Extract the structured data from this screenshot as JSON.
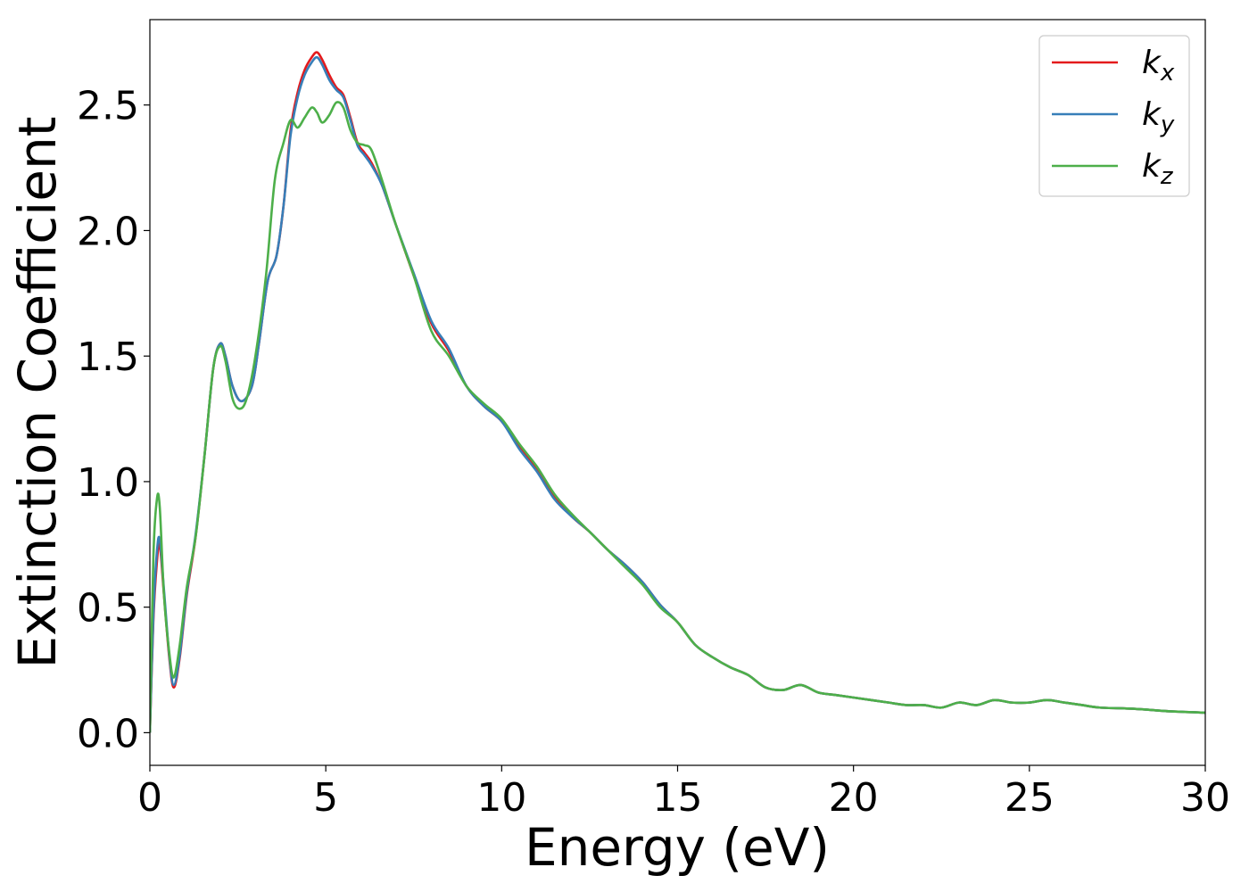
{
  "chart_data": {
    "type": "line",
    "title": "",
    "xlabel": "Energy (eV)",
    "ylabel": "Extinction Coefficient",
    "xlim": [
      0,
      30
    ],
    "ylim": [
      -0.13,
      2.84
    ],
    "xticks": [
      0,
      5,
      10,
      15,
      20,
      25,
      30
    ],
    "xtick_labels": [
      "0",
      "5",
      "10",
      "15",
      "20",
      "25",
      "30"
    ],
    "yticks": [
      0.0,
      0.5,
      1.0,
      1.5,
      2.0,
      2.5
    ],
    "ytick_labels": [
      "0.0",
      "0.5",
      "1.0",
      "1.5",
      "2.0",
      "2.5"
    ],
    "grid": false,
    "legend_position": "top-right",
    "series": [
      {
        "name": "k",
        "subscript": "x",
        "color": "#e41a1c",
        "x": [
          0,
          0.1,
          0.2,
          0.28,
          0.4,
          0.55,
          0.68,
          0.85,
          1.05,
          1.3,
          1.55,
          1.8,
          2.0,
          2.15,
          2.35,
          2.6,
          2.9,
          3.1,
          3.35,
          3.6,
          3.8,
          4.0,
          4.2,
          4.4,
          4.6,
          4.75,
          4.9,
          5.1,
          5.3,
          5.5,
          5.7,
          5.9,
          6.1,
          6.3,
          6.6,
          7.0,
          7.5,
          8.0,
          8.5,
          9.0,
          9.5,
          10.0,
          10.5,
          11.0,
          11.5,
          12.0,
          12.5,
          13.0,
          13.5,
          14.0,
          14.5,
          15.0,
          15.5,
          16.0,
          16.5,
          17.0,
          17.5,
          18.0,
          18.5,
          19.0,
          19.5,
          20.0,
          20.5,
          21.0,
          21.5,
          22.0,
          22.5,
          23.0,
          23.5,
          24.0,
          24.5,
          25.0,
          25.5,
          26.0,
          26.5,
          27.0,
          28.0,
          29.0,
          30.0
        ],
        "y": [
          0.0,
          0.45,
          0.68,
          0.75,
          0.55,
          0.3,
          0.18,
          0.3,
          0.55,
          0.78,
          1.1,
          1.45,
          1.55,
          1.5,
          1.38,
          1.32,
          1.38,
          1.55,
          1.8,
          1.9,
          2.1,
          2.4,
          2.55,
          2.64,
          2.69,
          2.71,
          2.68,
          2.62,
          2.57,
          2.54,
          2.45,
          2.35,
          2.31,
          2.27,
          2.18,
          2.02,
          1.82,
          1.63,
          1.52,
          1.38,
          1.3,
          1.24,
          1.14,
          1.05,
          0.94,
          0.86,
          0.8,
          0.73,
          0.67,
          0.6,
          0.51,
          0.44,
          0.35,
          0.3,
          0.26,
          0.23,
          0.18,
          0.17,
          0.19,
          0.16,
          0.15,
          0.14,
          0.13,
          0.12,
          0.11,
          0.11,
          0.1,
          0.12,
          0.11,
          0.13,
          0.12,
          0.12,
          0.13,
          0.12,
          0.11,
          0.1,
          0.095,
          0.085,
          0.08
        ]
      },
      {
        "name": "k",
        "subscript": "y",
        "color": "#377eb8",
        "x": [
          0,
          0.1,
          0.2,
          0.28,
          0.4,
          0.55,
          0.68,
          0.85,
          1.05,
          1.3,
          1.55,
          1.8,
          2.0,
          2.15,
          2.35,
          2.6,
          2.9,
          3.1,
          3.35,
          3.6,
          3.8,
          4.0,
          4.2,
          4.4,
          4.6,
          4.75,
          4.9,
          5.1,
          5.3,
          5.5,
          5.7,
          5.9,
          6.1,
          6.3,
          6.6,
          7.0,
          7.5,
          8.0,
          8.5,
          9.0,
          9.5,
          10.0,
          10.5,
          11.0,
          11.5,
          12.0,
          12.5,
          13.0,
          13.5,
          14.0,
          14.5,
          15.0,
          15.5,
          16.0,
          16.5,
          17.0,
          17.5,
          18.0,
          18.5,
          19.0,
          19.5,
          20.0,
          20.5,
          21.0,
          21.5,
          22.0,
          22.5,
          23.0,
          23.5,
          24.0,
          24.5,
          25.0,
          25.5,
          26.0,
          26.5,
          27.0,
          28.0,
          29.0,
          30.0
        ],
        "y": [
          0.0,
          0.47,
          0.72,
          0.77,
          0.57,
          0.31,
          0.19,
          0.31,
          0.56,
          0.79,
          1.1,
          1.45,
          1.55,
          1.5,
          1.38,
          1.32,
          1.38,
          1.55,
          1.8,
          1.9,
          2.1,
          2.38,
          2.53,
          2.62,
          2.67,
          2.69,
          2.66,
          2.6,
          2.56,
          2.53,
          2.44,
          2.34,
          2.3,
          2.26,
          2.18,
          2.02,
          1.83,
          1.64,
          1.53,
          1.38,
          1.3,
          1.24,
          1.13,
          1.04,
          0.93,
          0.86,
          0.8,
          0.73,
          0.67,
          0.6,
          0.51,
          0.44,
          0.35,
          0.3,
          0.26,
          0.23,
          0.18,
          0.17,
          0.19,
          0.16,
          0.15,
          0.14,
          0.13,
          0.12,
          0.11,
          0.11,
          0.1,
          0.12,
          0.11,
          0.13,
          0.12,
          0.12,
          0.13,
          0.12,
          0.11,
          0.1,
          0.095,
          0.085,
          0.08
        ]
      },
      {
        "name": "k",
        "subscript": "z",
        "color": "#4daf4a",
        "x": [
          0,
          0.1,
          0.2,
          0.28,
          0.4,
          0.55,
          0.68,
          0.85,
          1.05,
          1.3,
          1.55,
          1.8,
          2.0,
          2.15,
          2.35,
          2.55,
          2.75,
          3.0,
          3.3,
          3.55,
          3.8,
          4.0,
          4.2,
          4.4,
          4.6,
          4.75,
          4.9,
          5.1,
          5.3,
          5.5,
          5.7,
          5.9,
          6.1,
          6.3,
          6.6,
          7.0,
          7.5,
          8.0,
          8.5,
          9.0,
          9.5,
          10.0,
          10.5,
          11.0,
          11.5,
          12.0,
          12.5,
          13.0,
          13.5,
          14.0,
          14.5,
          15.0,
          15.5,
          16.0,
          16.5,
          17.0,
          17.5,
          18.0,
          18.5,
          19.0,
          19.5,
          20.0,
          20.5,
          21.0,
          21.5,
          22.0,
          22.5,
          23.0,
          23.5,
          24.0,
          24.5,
          25.0,
          25.5,
          26.0,
          26.5,
          27.0,
          28.0,
          29.0,
          30.0
        ],
        "y": [
          0.0,
          0.7,
          0.93,
          0.9,
          0.55,
          0.32,
          0.22,
          0.35,
          0.58,
          0.78,
          1.1,
          1.45,
          1.54,
          1.48,
          1.33,
          1.29,
          1.33,
          1.5,
          1.82,
          2.2,
          2.35,
          2.44,
          2.41,
          2.45,
          2.49,
          2.47,
          2.43,
          2.46,
          2.51,
          2.49,
          2.4,
          2.35,
          2.34,
          2.32,
          2.2,
          2.02,
          1.82,
          1.6,
          1.5,
          1.38,
          1.31,
          1.25,
          1.15,
          1.06,
          0.95,
          0.87,
          0.8,
          0.73,
          0.66,
          0.59,
          0.5,
          0.44,
          0.35,
          0.3,
          0.26,
          0.23,
          0.18,
          0.17,
          0.19,
          0.16,
          0.15,
          0.14,
          0.13,
          0.12,
          0.11,
          0.11,
          0.1,
          0.12,
          0.11,
          0.13,
          0.12,
          0.12,
          0.13,
          0.12,
          0.11,
          0.1,
          0.095,
          0.085,
          0.08
        ]
      }
    ]
  }
}
